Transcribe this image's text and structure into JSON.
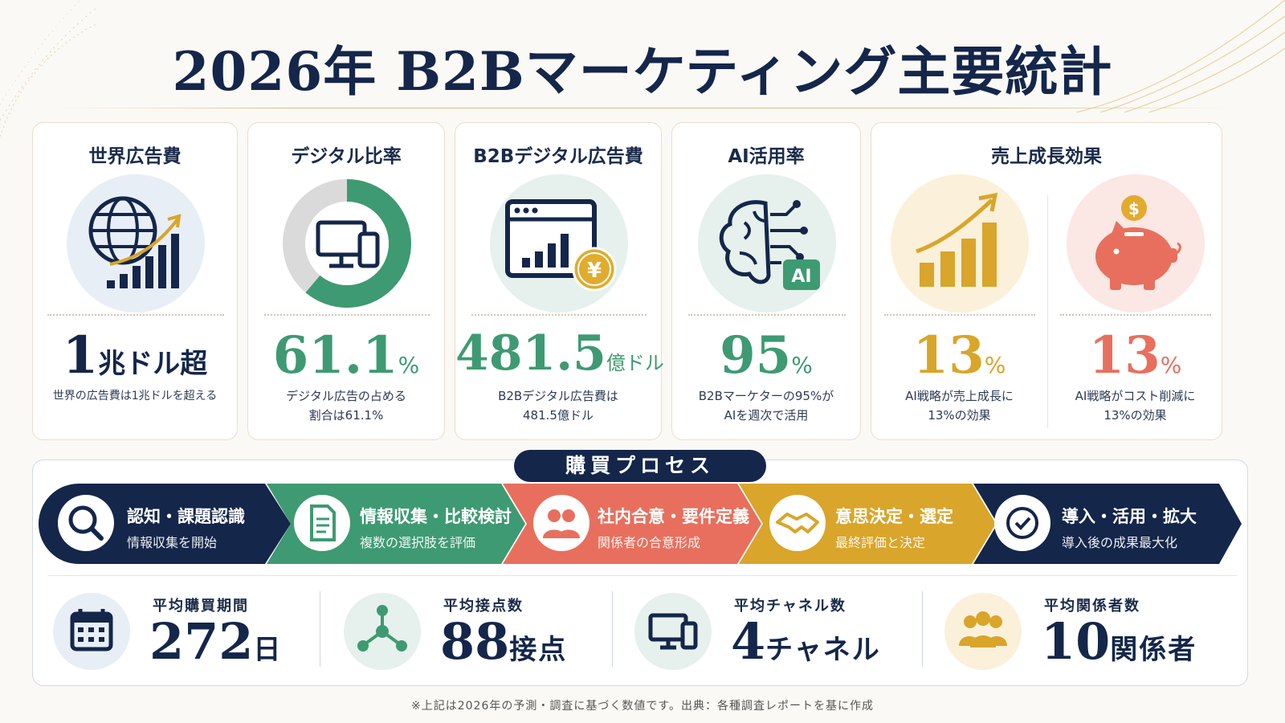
{
  "title": "2026年 B2Bマーケティング主要統計",
  "colors": {
    "navy": "#14264a",
    "green": "#3e9a72",
    "coral": "#e86f5d",
    "gold": "#d9a52a",
    "cream": "#fbf9f5"
  },
  "cards": [
    {
      "title": "世界広告費",
      "value": "1",
      "unit": "兆ドル超",
      "caption": "世界の広告費は1兆ドルを超える",
      "icon": "globe-growth-icon"
    },
    {
      "title": "デジタル比率",
      "value": "61.1",
      "unit": "%",
      "caption_line1": "デジタル広告の占める",
      "caption_line2": "割合は61.1%",
      "icon": "devices-donut-icon",
      "donut_percent": 61.1
    },
    {
      "title": "B2Bデジタル広告費",
      "value": "481.5",
      "unit": "億ドル",
      "caption_line1": "B2Bデジタル広告費は",
      "caption_line2": "481.5億ドル",
      "icon": "browser-chart-yen-icon"
    },
    {
      "title": "AI活用率",
      "value": "95",
      "unit": "%",
      "caption_line1": "B2Bマーケターの95%が",
      "caption_line2": "AIを週次で活用",
      "icon": "ai-brain-icon"
    },
    {
      "title": "売上成長効果",
      "left": {
        "value": "13",
        "unit": "%",
        "caption_line1": "AI戦略が売上成長に",
        "caption_line2": "13%の効果",
        "icon": "growth-bars-icon"
      },
      "right": {
        "value": "13",
        "unit": "%",
        "caption_line1": "AI戦略がコスト削減に",
        "caption_line2": "13%の効果",
        "icon": "piggy-bank-icon"
      }
    }
  ],
  "process": {
    "label": "購買プロセス",
    "stages": [
      {
        "title": "認知・課題認識",
        "sub": "情報収集を開始",
        "icon": "search-icon"
      },
      {
        "title": "情報収集・比較検討",
        "sub": "複数の選択肢を評価",
        "icon": "document-icon"
      },
      {
        "title": "社内合意・要件定義",
        "sub": "関係者の合意形成",
        "icon": "people-icon"
      },
      {
        "title": "意思決定・選定",
        "sub": "最終評価と決定",
        "icon": "handshake-icon"
      },
      {
        "title": "導入・活用・拡大",
        "sub": "導入後の成果最大化",
        "icon": "check-circle-icon"
      }
    ],
    "metrics": [
      {
        "label": "平均購買期間",
        "value": "272",
        "unit": "日",
        "icon": "calendar-icon"
      },
      {
        "label": "平均接点数",
        "value": "88",
        "unit": "接点",
        "icon": "network-icon"
      },
      {
        "label": "平均チャネル数",
        "value": "4",
        "unit": "チャネル",
        "icon": "devices-icon"
      },
      {
        "label": "平均関係者数",
        "value": "10",
        "unit": "関係者",
        "icon": "group-icon"
      }
    ]
  },
  "footnote": "※上記は2026年の予測・調査に基づく数値です。出典：各種調査レポートを基に作成"
}
